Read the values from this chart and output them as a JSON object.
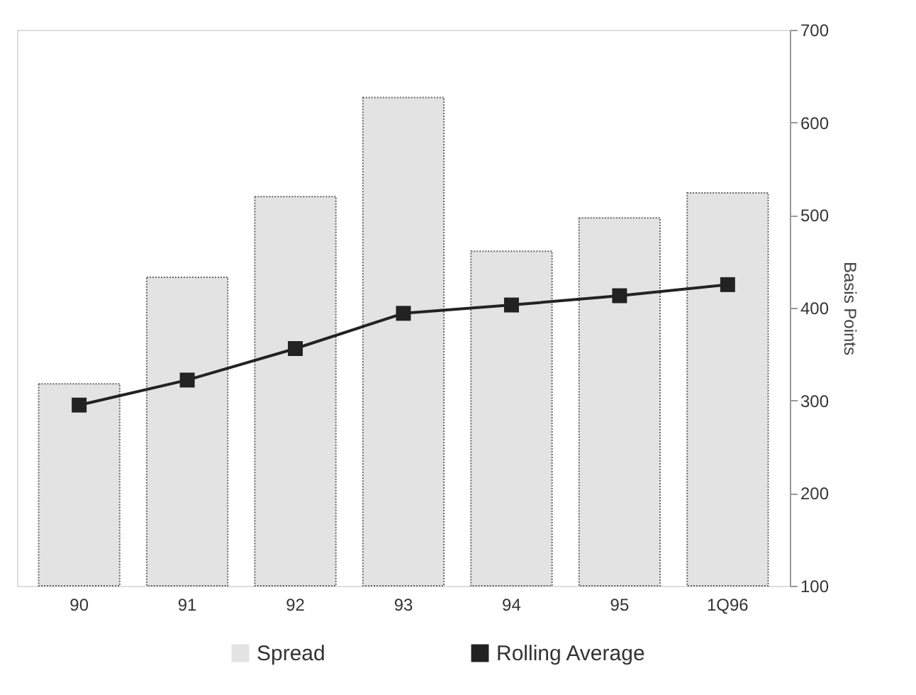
{
  "chart_data": {
    "type": "bar",
    "categories": [
      "90",
      "91",
      "92",
      "93",
      "94",
      "95",
      "1Q96"
    ],
    "series": [
      {
        "name": "Spread",
        "color": "#e3e3e3",
        "values": [
          318,
          433,
          520,
          627,
          461,
          497,
          524
        ]
      },
      {
        "name": "Rolling Average",
        "type": "line",
        "color": "#222222",
        "marker": "square",
        "values": [
          295,
          322,
          356,
          394,
          403,
          413,
          425
        ]
      }
    ],
    "ylabel": "Basis Points",
    "ylim": [
      100,
      700
    ],
    "yticks": [
      100,
      200,
      300,
      400,
      500,
      600,
      700
    ],
    "grid": false,
    "legend": "bottom"
  }
}
